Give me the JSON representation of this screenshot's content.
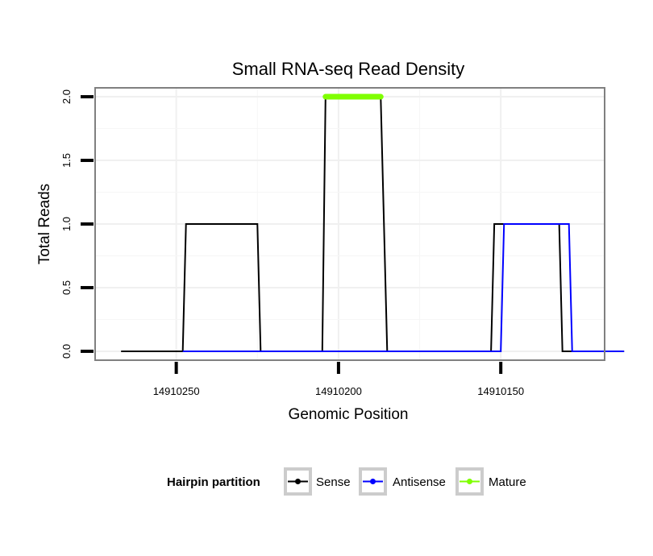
{
  "chart_data": {
    "type": "line",
    "title": "Small RNA-seq Read Density",
    "xlabel": "Genomic Position",
    "ylabel": "Total Reads",
    "x_reversed": true,
    "xlim": [
      14910275,
      14910118
    ],
    "ylim": [
      -0.07,
      2.07
    ],
    "x_ticks": [
      14910250,
      14910200,
      14910150
    ],
    "x_tick_labels": [
      "14910250",
      "14910200",
      "14910150"
    ],
    "y_ticks": [
      0.0,
      0.5,
      1.0,
      1.5,
      2.0
    ],
    "y_tick_labels": [
      "0.0",
      "0.5",
      "1.0",
      "1.5",
      "2.0"
    ],
    "grid": true,
    "legend_position": "bottom",
    "legend_title": "Hairpin partition",
    "series": [
      {
        "name": "Sense",
        "color": "#000000",
        "x": [
          14910267,
          14910248,
          14910247,
          14910225,
          14910224,
          14910205,
          14910204,
          14910187,
          14910185,
          14910153,
          14910152,
          14910132,
          14910131,
          14910112
        ],
        "y": [
          0,
          0,
          1,
          1,
          0,
          0,
          2,
          2,
          0,
          0,
          1,
          1,
          0,
          0
        ]
      },
      {
        "name": "Antisense",
        "color": "#0000ff",
        "x": [
          14910248,
          14910150,
          14910149,
          14910129,
          14910128,
          14910112
        ],
        "y": [
          0,
          0,
          1,
          1,
          0,
          0
        ]
      },
      {
        "name": "Mature",
        "color": "#7fff00",
        "x": [
          14910204,
          14910187
        ],
        "y": [
          2,
          2
        ]
      }
    ]
  }
}
